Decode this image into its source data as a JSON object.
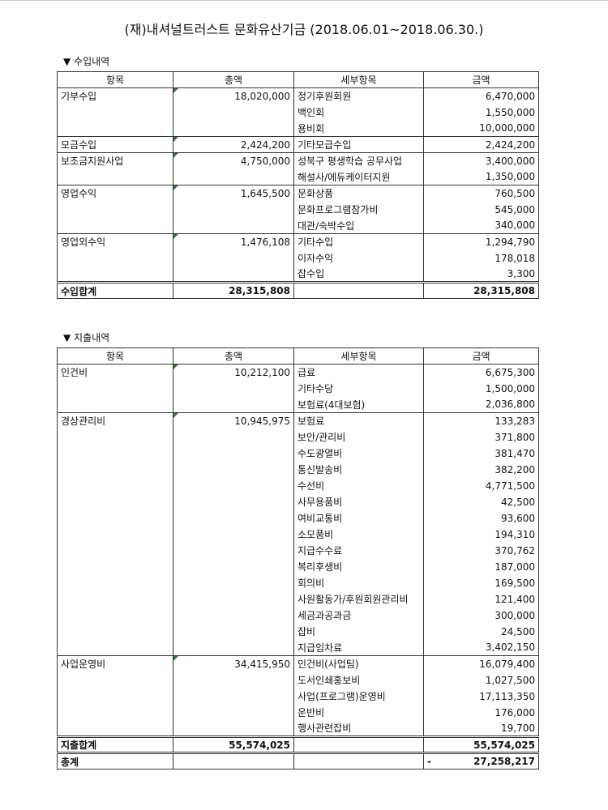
{
  "title": "(재)내셔널트러스트 문화유산기금 (2018.06.01~2018.06.30.)",
  "headers": [
    "항목",
    "총액",
    "세부항목",
    "금액"
  ],
  "income": {
    "label": "▼ 수입내역",
    "groups": [
      {
        "name": "기부수입",
        "total": "18,020,000",
        "items": [
          [
            "정기후원회원",
            "6,470,000"
          ],
          [
            "백인회",
            "1,550,000"
          ],
          [
            "용비회",
            "10,000,000"
          ]
        ]
      },
      {
        "name": "모금수입",
        "total": "2,424,200",
        "items": [
          [
            "기타모급수입",
            "2,424,200"
          ]
        ]
      },
      {
        "name": "보조금지원사업",
        "total": "4,750,000",
        "items": [
          [
            "성북구 평생학습 공무사업",
            "3,400,000"
          ],
          [
            "해설사/에듀케이터지원",
            "1,350,000"
          ]
        ]
      },
      {
        "name": "영업수익",
        "total": "1,645,500",
        "items": [
          [
            "문화상품",
            "760,500"
          ],
          [
            "문화프로그램참가비",
            "545,000"
          ],
          [
            "대관/숙박수입",
            "340,000"
          ]
        ]
      },
      {
        "name": "영업외수익",
        "total": "1,476,108",
        "items": [
          [
            "기타수입",
            "1,294,790"
          ],
          [
            "이자수익",
            "178,018"
          ],
          [
            "잡수입",
            "3,300"
          ]
        ]
      }
    ],
    "total": {
      "name": "수입합계",
      "total": "28,315,808",
      "amount": "28,315,808"
    }
  },
  "expense": {
    "label": "▼ 지출내역",
    "groups": [
      {
        "name": "인건비",
        "total": "10,212,100",
        "items": [
          [
            "급료",
            "6,675,300"
          ],
          [
            "기타수당",
            "1,500,000"
          ],
          [
            "보험료(4대보험)",
            "2,036,800"
          ]
        ]
      },
      {
        "name": "경상관리비",
        "total": "10,945,975",
        "items": [
          [
            "보험료",
            "133,283"
          ],
          [
            "보안/관리비",
            "371,800"
          ],
          [
            "수도광열비",
            "381,470"
          ],
          [
            "통신발송비",
            "382,200"
          ],
          [
            "수선비",
            "4,771,500"
          ],
          [
            "사무용품비",
            "42,500"
          ],
          [
            "여비교통비",
            "93,600"
          ],
          [
            "소모품비",
            "194,310"
          ],
          [
            "지급수수료",
            "370,762"
          ],
          [
            "복리후생비",
            "187,000"
          ],
          [
            "회의비",
            "169,500"
          ],
          [
            "사원활동가/후원회원관리비",
            "121,400"
          ],
          [
            "세금과공과금",
            "300,000"
          ],
          [
            "잡비",
            "24,500"
          ],
          [
            "지급임차료",
            "3,402,150"
          ]
        ]
      },
      {
        "name": "사업운영비",
        "total": "34,415,950",
        "items": [
          [
            "인건비(사업팀)",
            "16,079,400"
          ],
          [
            "도서인쇄홍보비",
            "1,027,500"
          ],
          [
            "사업(프로그램)운영비",
            "17,113,350"
          ],
          [
            "운반비",
            "176,000"
          ],
          [
            "행사관련잡비",
            "19,700"
          ]
        ]
      }
    ],
    "total": {
      "name": "지출합계",
      "total": "55,574,025",
      "amount": "55,574,025"
    },
    "grand": {
      "name": "총계",
      "sign": "-",
      "amount": "27,258,217"
    }
  }
}
